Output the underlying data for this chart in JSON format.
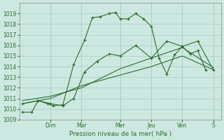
{
  "xlabel": "Pression niveau de la mer( hPa )",
  "bg_color": "#cce8e0",
  "grid_color": "#aaccc4",
  "line_color": "#2d6e2d",
  "ylim": [
    1009,
    1020
  ],
  "yticks": [
    1009,
    1010,
    1011,
    1012,
    1013,
    1014,
    1015,
    1016,
    1017,
    1018,
    1019
  ],
  "xlim": [
    0,
    13
  ],
  "day_labels": [
    "Dim",
    "Mar",
    "Mer",
    "Jeu",
    "Ven",
    "S"
  ],
  "day_positions": [
    2.0,
    4.0,
    6.5,
    8.5,
    10.5,
    12.5
  ],
  "series1_x": [
    0.2,
    0.8,
    1.2,
    1.8,
    2.2,
    2.8,
    3.5,
    4.2,
    4.7,
    5.2,
    5.8,
    6.2,
    6.5,
    7.0,
    7.5,
    8.0,
    8.5,
    9.0,
    9.5,
    10.0,
    10.5,
    11.0,
    11.5,
    12.0
  ],
  "series1_y": [
    1009.7,
    1009.7,
    1010.8,
    1010.5,
    1010.3,
    1010.4,
    1014.2,
    1016.5,
    1018.6,
    1018.7,
    1019.0,
    1019.1,
    1018.5,
    1018.5,
    1019.0,
    1018.5,
    1017.8,
    1014.8,
    1013.3,
    1015.1,
    1015.9,
    1015.2,
    1015.5,
    1013.7
  ],
  "series2_x": [
    0.2,
    1.2,
    2.0,
    2.8,
    3.5,
    4.2,
    5.0,
    5.8,
    6.5,
    7.5,
    8.5,
    9.5,
    10.5,
    11.5,
    12.5
  ],
  "series2_y": [
    1010.5,
    1010.8,
    1010.5,
    1010.3,
    1011.0,
    1013.5,
    1014.5,
    1015.2,
    1015.0,
    1016.0,
    1014.8,
    1016.4,
    1015.9,
    1016.4,
    1013.7
  ],
  "series3_x": [
    0.2,
    2.0,
    4.0,
    6.5,
    8.5,
    10.5,
    12.5
  ],
  "series3_y": [
    1010.5,
    1011.0,
    1012.2,
    1013.2,
    1014.0,
    1015.0,
    1013.7
  ],
  "series4_x": [
    0.2,
    2.0,
    4.0,
    6.5,
    8.5,
    10.5,
    12.5
  ],
  "series4_y": [
    1010.8,
    1011.2,
    1012.0,
    1013.8,
    1014.8,
    1015.8,
    1013.9
  ]
}
